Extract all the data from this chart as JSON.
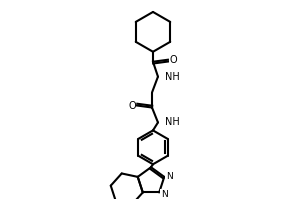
{
  "background_color": "#ffffff",
  "line_color": "#000000",
  "line_width": 1.5,
  "figsize": [
    3.0,
    2.0
  ],
  "dpi": 100,
  "xlim": [
    0,
    300
  ],
  "ylim": [
    0,
    200
  ]
}
